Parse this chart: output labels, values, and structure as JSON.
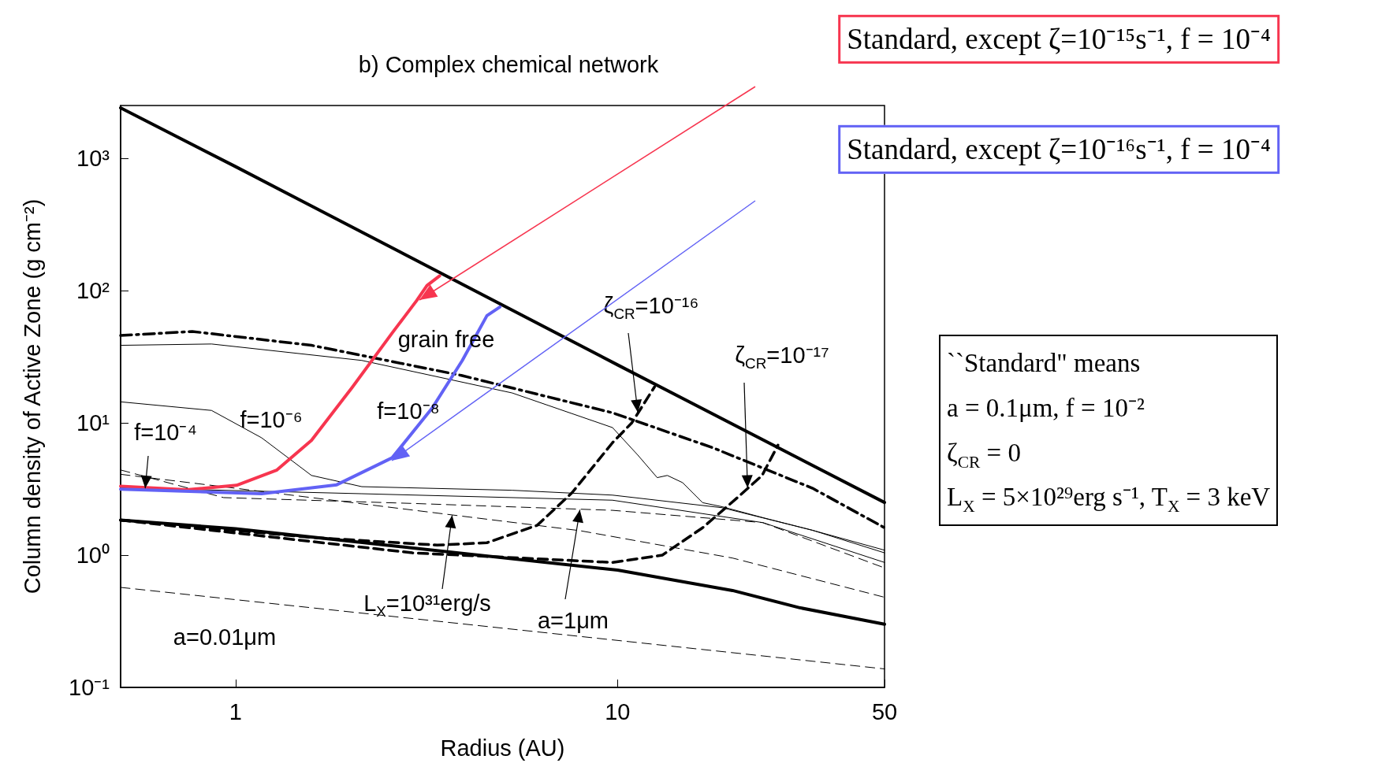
{
  "chart_data": {
    "type": "line",
    "title": "b) Complex chemical network",
    "xlabel": "Radius (AU)",
    "ylabel": "Column density of Active Zone (g cm⁻²)",
    "log": "xy",
    "grid": false,
    "marker": "none",
    "xlim": [
      0.5,
      50
    ],
    "xticks": [
      1,
      10,
      50
    ],
    "ylim": [
      0.1,
      2500
    ],
    "yticks": [
      {
        "value": 0.1,
        "label": "10⁻¹"
      },
      {
        "value": 1,
        "label": "10⁰"
      },
      {
        "value": 10,
        "label": "10¹"
      },
      {
        "value": 100,
        "label": "10²"
      },
      {
        "value": 1000,
        "label": "10³"
      }
    ],
    "series": [
      {
        "color": "#000000",
        "line_style": "solid",
        "x": [
          0.5,
          1,
          10,
          50
        ],
        "values": [
          2400,
          863,
          27.4,
          2.5
        ]
      },
      {
        "color": "#000000",
        "line_style": "solid",
        "x": [
          0.5,
          1,
          10,
          20,
          30,
          50
        ],
        "values": [
          1.84,
          1.58,
          0.77,
          0.54,
          0.4,
          0.3
        ]
      },
      {
        "color": "#000000",
        "line_style": "dashdot",
        "x": [
          0.5,
          0.77,
          1.58,
          3.9,
          9.7,
          17.7,
          32.4,
          50
        ],
        "values": [
          45.7,
          49,
          38.5,
          22.8,
          11.9,
          6.5,
          3.2,
          1.61
        ]
      },
      {
        "color": "#000000",
        "line_style": "solid",
        "x": [
          0.5,
          0.865,
          2.14,
          5.3,
          9.7,
          11.3,
          12.7,
          13.5,
          14.8,
          16.7,
          18.8,
          24,
          32.4,
          50
        ],
        "values": [
          38.5,
          39.4,
          29.6,
          16.8,
          9.2,
          5.7,
          3.85,
          4.0,
          3.53,
          2.49,
          2.32,
          1.92,
          1.54,
          1.09
        ]
      },
      {
        "color": "#000000",
        "line_style": "solid",
        "x": [
          0.5,
          0.865,
          1.17,
          1.58,
          2.14,
          5.3,
          9.7,
          18.8,
          32.4,
          50
        ],
        "values": [
          14.4,
          12.4,
          7.7,
          4.0,
          3.29,
          3.09,
          2.84,
          2.28,
          1.54,
          1.04
        ]
      },
      {
        "color": "#000000",
        "line_style": "solid",
        "x": [
          0.5,
          2.14,
          9.7,
          24,
          50
        ],
        "values": [
          3.23,
          2.91,
          2.6,
          1.76,
          0.88
        ]
      },
      {
        "color": "#000000",
        "line_style": "dashed",
        "x": [
          0.5,
          0.93,
          3,
          9.7,
          24,
          50
        ],
        "values": [
          4.4,
          2.72,
          2.45,
          2.18,
          1.76,
          0.8
        ]
      },
      {
        "color": "#000000",
        "line_style": "dashed",
        "x": [
          0.5,
          1,
          7.97,
          20,
          50
        ],
        "values": [
          4.08,
          3.2,
          1.53,
          0.95,
          0.48
        ]
      },
      {
        "color": "#000000",
        "line_style": "dashed",
        "x": [
          0.5,
          50
        ],
        "values": [
          0.57,
          0.138
        ]
      },
      {
        "color": "#f7354f",
        "line_style": "solid",
        "x": [
          0.5,
          0.744,
          1.006,
          1.28,
          1.58,
          2.016,
          2.57,
          2.98,
          3.17,
          3.42
        ],
        "values": [
          3.32,
          3.12,
          3.37,
          4.38,
          7.37,
          18.4,
          47.7,
          84,
          109,
          129
        ]
      },
      {
        "color": "#6262f5",
        "line_style": "solid",
        "x": [
          0.5,
          1.17,
          1.84,
          2.57,
          3.27,
          3.92,
          4.55,
          4.92
        ],
        "values": [
          3.15,
          2.91,
          3.4,
          5.44,
          12.9,
          29.5,
          64.5,
          75
        ]
      },
      {
        "color": "#000000",
        "line_style": "dashed",
        "x": [
          0.5,
          1.58,
          3.37,
          4.55,
          6.16,
          7.6,
          9.7,
          10.9,
          12.5
        ],
        "values": [
          1.84,
          1.36,
          1.19,
          1.24,
          1.68,
          2.96,
          7.07,
          10,
          18.7
        ]
      },
      {
        "color": "#000000",
        "line_style": "dashed",
        "x": [
          0.5,
          2.9,
          9.7,
          13.1,
          16.7,
          20.6,
          23.9,
          26.3
        ],
        "values": [
          1.84,
          1.04,
          0.88,
          1.0,
          1.61,
          2.72,
          4.0,
          6.77
        ]
      }
    ],
    "annotations": [
      "Standard, except ζ=10⁻¹⁵s⁻¹, f = 10⁻⁴",
      "Standard, except ζ=10⁻¹⁶s⁻¹, f = 10⁻⁴",
      "``Standard\" means",
      "a = 0.1μm, f = 10⁻²",
      "ζ$_{CR}$ = 0",
      "L$_{X}$ = 5×10²⁹erg s⁻¹, T$_{X}$ = 3 keV",
      {
        "text": "f=10⁻⁴",
        "x": 0.58,
        "y": 3.2
      },
      "f=10⁻⁶",
      "f=10⁻⁸",
      "grain free",
      {
        "text": "ζ$_{CR}$=10⁻¹⁶",
        "x": 11.3,
        "y": 12
      },
      {
        "text": "ζ$_{CR}$=10⁻¹⁷",
        "x": 21.9,
        "y": 3.23
      },
      {
        "text": "L$_{X}$=10³¹erg/s",
        "x": 3.69,
        "y": 2.0
      },
      {
        "text": "a=1μm",
        "x": 7.97,
        "y": 2.2
      },
      "a=0.01μm"
    ]
  }
}
